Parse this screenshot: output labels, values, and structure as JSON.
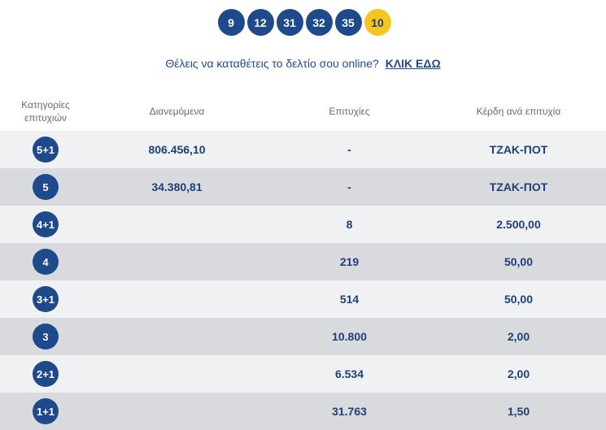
{
  "draw": {
    "numbers": [
      "9",
      "12",
      "31",
      "32",
      "35"
    ],
    "joker": "10"
  },
  "cta": {
    "text": "Θέλεις να καταθέτεις το δελτίο σου online?",
    "link": "ΚΛΙΚ ΕΔΩ"
  },
  "table": {
    "headers": {
      "category_line1": "Κατηγορίες",
      "category_line2": "επιτυχιών",
      "distributed": "Διανεμόμενα",
      "winners": "Επιτυχίες",
      "prize": "Κέρδη ανά επιτυχία"
    },
    "rows": [
      {
        "category": "5+1",
        "distributed": "806.456,10",
        "winners": "-",
        "prize": "ΤΖΑΚ-ΠΟΤ"
      },
      {
        "category": "5",
        "distributed": "34.380,81",
        "winners": "-",
        "prize": "ΤΖΑΚ-ΠΟΤ"
      },
      {
        "category": "4+1",
        "distributed": "",
        "winners": "8",
        "prize": "2.500,00"
      },
      {
        "category": "4",
        "distributed": "",
        "winners": "219",
        "prize": "50,00"
      },
      {
        "category": "3+1",
        "distributed": "",
        "winners": "514",
        "prize": "50,00"
      },
      {
        "category": "3",
        "distributed": "",
        "winners": "10.800",
        "prize": "2,00"
      },
      {
        "category": "2+1",
        "distributed": "",
        "winners": "6.534",
        "prize": "2,00"
      },
      {
        "category": "1+1",
        "distributed": "",
        "winners": "31.763",
        "prize": "1,50"
      }
    ]
  },
  "colors": {
    "ball_blue": "#1e4a8c",
    "joker_yellow": "#f5c522",
    "row_light": "#f0f1f3",
    "row_dark": "#d9dadd"
  }
}
